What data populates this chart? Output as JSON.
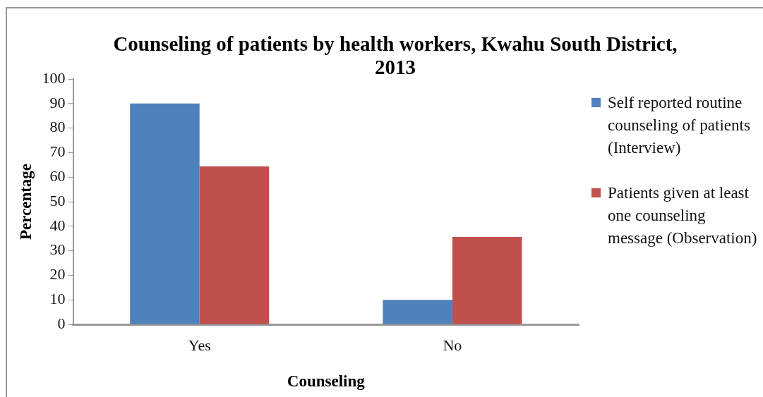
{
  "chart_data": {
    "type": "bar",
    "title": "Counseling of patients by health workers, Kwahu South District, 2013",
    "xlabel": "Counseling",
    "ylabel": "Percentage",
    "categories": [
      "Yes",
      "No"
    ],
    "series": [
      {
        "name": "Self reported routine counseling of patients (Interview)",
        "color": "#4f81bd",
        "values": [
          90,
          10
        ]
      },
      {
        "name": "Patients given at least one counseling message (Observation)",
        "color": "#c0504d",
        "values": [
          64.4,
          35.6
        ]
      }
    ],
    "ylim": [
      0,
      100
    ],
    "yticks": [
      0,
      10,
      20,
      30,
      40,
      50,
      60,
      70,
      80,
      90,
      100
    ],
    "grid": false,
    "legend": "right"
  }
}
